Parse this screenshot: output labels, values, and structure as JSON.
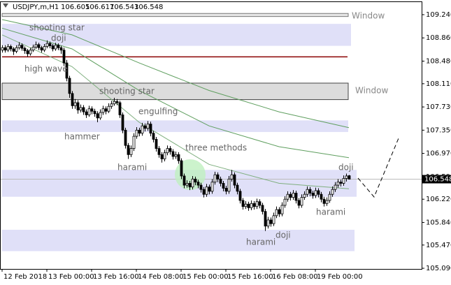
{
  "chart_data": {
    "type": "candlestick",
    "symbol": "USDJPY,m,H1",
    "ohlc": [
      [
        108.66,
        108.74,
        108.62,
        108.7
      ],
      [
        108.7,
        108.74,
        108.62,
        108.66
      ],
      [
        108.66,
        108.76,
        108.63,
        108.72
      ],
      [
        108.72,
        108.75,
        108.64,
        108.68
      ],
      [
        108.68,
        108.71,
        108.58,
        108.64
      ],
      [
        108.64,
        108.74,
        108.61,
        108.7
      ],
      [
        108.7,
        108.79,
        108.67,
        108.74
      ],
      [
        108.74,
        108.77,
        108.65,
        108.69
      ],
      [
        108.69,
        108.72,
        108.6,
        108.65
      ],
      [
        108.65,
        108.68,
        108.55,
        108.6
      ],
      [
        108.6,
        108.7,
        108.57,
        108.66
      ],
      [
        108.66,
        108.75,
        108.63,
        108.71
      ],
      [
        108.71,
        108.8,
        108.68,
        108.75
      ],
      [
        108.75,
        108.78,
        108.66,
        108.7
      ],
      [
        108.7,
        108.73,
        108.62,
        108.66
      ],
      [
        108.66,
        108.76,
        108.63,
        108.72
      ],
      [
        108.72,
        108.82,
        108.69,
        108.77
      ],
      [
        108.77,
        108.8,
        108.69,
        108.73
      ],
      [
        108.73,
        108.76,
        108.64,
        108.68
      ],
      [
        108.68,
        108.78,
        108.65,
        108.74
      ],
      [
        108.74,
        108.77,
        108.66,
        108.7
      ],
      [
        108.7,
        108.73,
        108.6,
        108.66
      ],
      [
        108.66,
        108.7,
        108.4,
        108.45
      ],
      [
        108.45,
        108.5,
        108.15,
        108.2
      ],
      [
        108.2,
        108.24,
        107.88,
        107.95
      ],
      [
        107.95,
        107.99,
        107.7,
        107.75
      ],
      [
        107.75,
        107.86,
        107.7,
        107.8
      ],
      [
        107.8,
        107.84,
        107.62,
        107.68
      ],
      [
        107.68,
        107.77,
        107.64,
        107.72
      ],
      [
        107.72,
        107.76,
        107.6,
        107.65
      ],
      [
        107.65,
        107.69,
        107.55,
        107.6
      ],
      [
        107.6,
        107.75,
        107.57,
        107.7
      ],
      [
        107.7,
        107.74,
        107.61,
        107.66
      ],
      [
        107.66,
        107.7,
        107.57,
        107.62
      ],
      [
        107.62,
        107.66,
        107.48,
        107.55
      ],
      [
        107.55,
        107.69,
        107.52,
        107.64
      ],
      [
        107.64,
        107.75,
        107.6,
        107.7
      ],
      [
        107.7,
        107.74,
        107.61,
        107.66
      ],
      [
        107.66,
        107.79,
        107.63,
        107.74
      ],
      [
        107.74,
        107.83,
        107.7,
        107.78
      ],
      [
        107.78,
        107.88,
        107.75,
        107.82
      ],
      [
        107.82,
        107.86,
        107.76,
        107.8
      ],
      [
        107.8,
        107.83,
        107.55,
        107.6
      ],
      [
        107.6,
        107.64,
        107.3,
        107.35
      ],
      [
        107.35,
        107.39,
        107.05,
        107.1
      ],
      [
        107.1,
        107.14,
        106.88,
        106.95
      ],
      [
        106.95,
        107.1,
        106.91,
        107.05
      ],
      [
        107.05,
        107.3,
        107.01,
        107.25
      ],
      [
        107.25,
        107.4,
        107.21,
        107.35
      ],
      [
        107.35,
        107.39,
        107.25,
        107.3
      ],
      [
        107.3,
        107.47,
        107.26,
        107.42
      ],
      [
        107.42,
        107.46,
        107.33,
        107.38
      ],
      [
        107.38,
        107.5,
        107.34,
        107.45
      ],
      [
        107.45,
        107.49,
        107.25,
        107.3
      ],
      [
        107.3,
        107.34,
        107.15,
        107.2
      ],
      [
        107.2,
        107.24,
        107.0,
        107.05
      ],
      [
        107.05,
        107.09,
        106.9,
        106.95
      ],
      [
        106.95,
        106.99,
        106.82,
        106.88
      ],
      [
        106.88,
        107.03,
        106.84,
        106.98
      ],
      [
        106.98,
        107.1,
        106.94,
        107.05
      ],
      [
        107.05,
        107.09,
        106.95,
        107.0
      ],
      [
        107.0,
        107.04,
        106.87,
        106.92
      ],
      [
        106.92,
        107.0,
        106.88,
        106.95
      ],
      [
        106.95,
        106.99,
        106.8,
        106.85
      ],
      [
        106.85,
        106.89,
        106.55,
        106.6
      ],
      [
        106.6,
        106.64,
        106.4,
        106.45
      ],
      [
        106.45,
        106.53,
        106.41,
        106.48
      ],
      [
        106.48,
        106.52,
        106.37,
        106.42
      ],
      [
        106.42,
        106.6,
        106.38,
        106.55
      ],
      [
        106.55,
        106.59,
        106.45,
        106.5
      ],
      [
        106.5,
        106.54,
        106.4,
        106.45
      ],
      [
        106.45,
        106.49,
        106.33,
        106.38
      ],
      [
        106.38,
        106.42,
        106.25,
        106.3
      ],
      [
        106.3,
        106.47,
        106.26,
        106.42
      ],
      [
        106.42,
        106.46,
        106.3,
        106.35
      ],
      [
        106.35,
        106.55,
        106.31,
        106.5
      ],
      [
        106.5,
        106.67,
        106.46,
        106.62
      ],
      [
        106.62,
        106.66,
        106.5,
        106.55
      ],
      [
        106.55,
        106.59,
        106.43,
        106.48
      ],
      [
        106.48,
        106.52,
        106.35,
        106.4
      ],
      [
        106.4,
        106.44,
        106.3,
        106.35
      ],
      [
        106.35,
        106.6,
        106.31,
        106.55
      ],
      [
        106.55,
        106.7,
        106.51,
        106.62
      ],
      [
        106.62,
        106.66,
        106.4,
        106.45
      ],
      [
        106.45,
        106.49,
        106.3,
        106.35
      ],
      [
        106.35,
        106.39,
        106.15,
        106.2
      ],
      [
        106.2,
        106.24,
        106.05,
        106.1
      ],
      [
        106.1,
        106.19,
        106.06,
        106.14
      ],
      [
        106.14,
        106.18,
        106.03,
        106.08
      ],
      [
        106.08,
        106.2,
        106.04,
        106.15
      ],
      [
        106.15,
        106.19,
        106.05,
        106.1
      ],
      [
        106.1,
        106.23,
        106.06,
        106.18
      ],
      [
        106.18,
        106.22,
        106.07,
        106.12
      ],
      [
        106.12,
        106.16,
        105.97,
        106.02
      ],
      [
        106.02,
        106.06,
        105.7,
        105.78
      ],
      [
        105.78,
        105.93,
        105.74,
        105.88
      ],
      [
        105.88,
        105.92,
        105.77,
        105.82
      ],
      [
        105.82,
        106.0,
        105.78,
        105.95
      ],
      [
        105.95,
        106.1,
        105.91,
        106.05
      ],
      [
        106.05,
        106.09,
        105.93,
        105.98
      ],
      [
        105.98,
        106.17,
        105.94,
        106.12
      ],
      [
        106.12,
        106.27,
        106.08,
        106.22
      ],
      [
        106.22,
        106.35,
        106.18,
        106.3
      ],
      [
        106.3,
        106.34,
        106.2,
        106.25
      ],
      [
        106.25,
        106.37,
        106.21,
        106.32
      ],
      [
        106.32,
        106.36,
        106.15,
        106.2
      ],
      [
        106.2,
        106.24,
        106.07,
        106.12
      ],
      [
        106.12,
        106.3,
        106.08,
        106.25
      ],
      [
        106.25,
        106.35,
        106.21,
        106.3
      ],
      [
        106.3,
        106.43,
        106.26,
        106.38
      ],
      [
        106.38,
        106.42,
        106.27,
        106.32
      ],
      [
        106.32,
        106.36,
        106.23,
        106.28
      ],
      [
        106.28,
        106.41,
        106.24,
        106.36
      ],
      [
        106.36,
        106.4,
        106.25,
        106.3
      ],
      [
        106.3,
        106.34,
        106.17,
        106.22
      ],
      [
        106.22,
        106.26,
        106.1,
        106.15
      ],
      [
        106.15,
        106.25,
        106.11,
        106.2
      ],
      [
        106.2,
        106.35,
        106.16,
        106.3
      ],
      [
        106.3,
        106.43,
        106.26,
        106.38
      ],
      [
        106.38,
        106.5,
        106.34,
        106.45
      ],
      [
        106.45,
        106.55,
        106.41,
        106.5
      ],
      [
        106.5,
        106.54,
        106.43,
        106.48
      ],
      [
        106.48,
        106.61,
        106.44,
        106.56
      ],
      [
        106.56,
        106.64,
        106.51,
        106.6
      ],
      [
        106.605,
        106.617,
        106.543,
        106.548
      ]
    ],
    "xlim": [
      -0.75,
      150
    ],
    "ylim": [
      105.079,
      109.423
    ],
    "yticks": [
      {
        "value": 109.24,
        "label": "109.240"
      },
      {
        "value": 108.86,
        "label": "108.860"
      },
      {
        "value": 108.48,
        "label": "108.480"
      },
      {
        "value": 108.11,
        "label": "108.110"
      },
      {
        "value": 107.73,
        "label": "107.730"
      },
      {
        "value": 107.35,
        "label": "107.350"
      },
      {
        "value": 106.97,
        "label": "106.970"
      },
      {
        "value": 106.59,
        "label": "106.590"
      },
      {
        "value": 106.22,
        "label": "106.220"
      },
      {
        "value": 105.84,
        "label": "105.840"
      },
      {
        "value": 105.47,
        "label": "105.470"
      },
      {
        "value": 105.09,
        "label": "105.090"
      }
    ],
    "xticks": [
      {
        "value": 0,
        "label": "12 Feb 2018"
      },
      {
        "value": 16,
        "label": "13 Feb 00:00"
      },
      {
        "value": 32,
        "label": "13 Feb 16:00"
      },
      {
        "value": 48,
        "label": "14 Feb 08:00"
      },
      {
        "value": 64,
        "label": "15 Feb 00:00"
      },
      {
        "value": 80,
        "label": "15 Feb 16:00"
      },
      {
        "value": 96,
        "label": "16 Feb 08:00"
      },
      {
        "value": 112,
        "label": "19 Feb 00:00"
      }
    ],
    "ma_x": [
      0,
      25,
      49,
      74,
      99,
      124
    ],
    "ma": [
      {
        "color": "#5f9f5f",
        "values": [
          109.16,
          108.91,
          108.45,
          108.0,
          107.65,
          107.39
        ]
      },
      {
        "color": "#5f9f5f",
        "values": [
          109.02,
          108.68,
          108.0,
          107.42,
          107.08,
          106.9
        ]
      },
      {
        "color": "#7faf7f",
        "values": [
          108.91,
          108.39,
          107.48,
          106.79,
          106.48,
          106.39
        ]
      }
    ],
    "zones": [
      {
        "from": 109.26,
        "to": 109.21,
        "color": "#e6e6e6"
      },
      {
        "from": 109.09,
        "to": 108.73,
        "color": "#e0e0f8"
      },
      {
        "from": 108.12,
        "to": 107.85,
        "color": "#dcdcdc"
      },
      {
        "from": 107.51,
        "to": 107.32,
        "color": "#e0e0f8"
      },
      {
        "from": 106.7,
        "to": 106.26,
        "color": "#e0e0f8"
      },
      {
        "from": 105.72,
        "to": 105.37,
        "color": "#e0e0f8"
      }
    ],
    "level": {
      "value": 108.55,
      "color": "#8b0000"
    },
    "annotations": [
      "shooting star",
      "doji",
      "high wave",
      "shooting star",
      "engulfing",
      "hammer",
      "harami",
      "three methods",
      "doji",
      "harami",
      "harami",
      "doji",
      "Window",
      "Window"
    ]
  }
}
